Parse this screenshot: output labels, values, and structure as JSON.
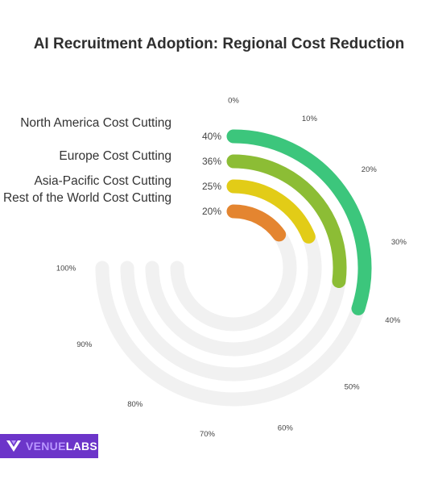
{
  "chart_data": {
    "type": "radial-bar",
    "title": "AI Recruitment Adoption: Regional Cost Reduction",
    "axis_ticks": [
      "0%",
      "10%",
      "20%",
      "30%",
      "40%",
      "50%",
      "60%",
      "70%",
      "80%",
      "90%",
      "100%"
    ],
    "range": [
      0,
      100
    ],
    "track_color": "#f1f1f1",
    "series": [
      {
        "name": "North America Cost Cutting",
        "value": 40,
        "value_label": "40%",
        "color": "#3cc67c"
      },
      {
        "name": "Europe Cost Cutting",
        "value": 36,
        "value_label": "36%",
        "color": "#8cbd35"
      },
      {
        "name": "Asia-Pacific Cost Cutting",
        "value": 25,
        "value_label": "25%",
        "color": "#e2cc17"
      },
      {
        "name": "Rest of the World Cost Cutting",
        "value": 20,
        "value_label": "20%",
        "color": "#e48530"
      }
    ]
  },
  "branding": {
    "logo_icon": "venuelabs-v-logo-icon",
    "name_part1": "VENUE",
    "name_part2": "LABS"
  }
}
